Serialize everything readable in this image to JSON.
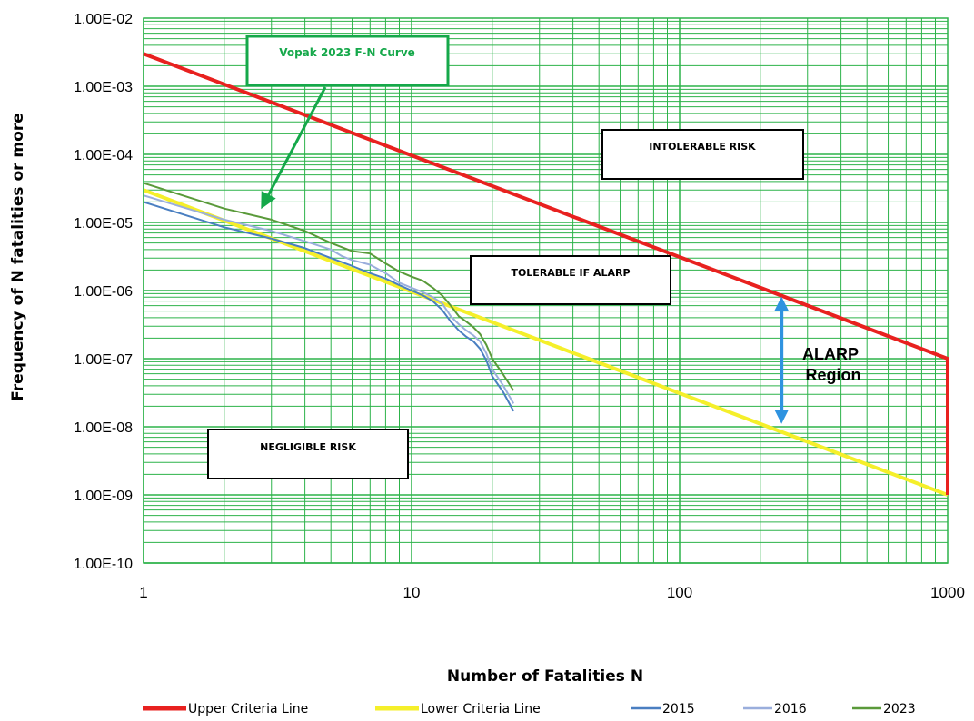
{
  "chart_data": {
    "type": "line",
    "title": "",
    "xlabel": "Number of Fatalities N",
    "ylabel": "Frequency of N fatalities or more",
    "x_scale": "log",
    "y_scale": "log",
    "xlim": [
      1,
      1000
    ],
    "ylim": [
      1e-10,
      0.01
    ],
    "grid": true,
    "grid_color": "#2db34a",
    "x_ticks": [
      {
        "value": 1,
        "label": "1"
      },
      {
        "value": 10,
        "label": "10"
      },
      {
        "value": 100,
        "label": "100"
      },
      {
        "value": 1000,
        "label": "1000"
      }
    ],
    "y_ticks": [
      {
        "value": 0.01,
        "label": "1.00E-02"
      },
      {
        "value": 0.001,
        "label": "1.00E-03"
      },
      {
        "value": 0.0001,
        "label": "1.00E-04"
      },
      {
        "value": 1e-05,
        "label": "1.00E-05"
      },
      {
        "value": 1e-06,
        "label": "1.00E-06"
      },
      {
        "value": 1e-07,
        "label": "1.00E-07"
      },
      {
        "value": 1e-08,
        "label": "1.00E-08"
      },
      {
        "value": 1e-09,
        "label": "1.00E-09"
      },
      {
        "value": 1e-10,
        "label": "1.00E-10"
      }
    ],
    "legend_position": "bottom",
    "series": [
      {
        "name": "Upper Criteria Line",
        "color": "#e8211f",
        "width": 4,
        "points": [
          [
            1,
            0.003
          ],
          [
            1000,
            1e-07
          ],
          [
            1000,
            1e-09
          ]
        ]
      },
      {
        "name": "Lower Criteria Line",
        "color": "#f5ef2a",
        "width": 4,
        "points": [
          [
            1,
            3e-05
          ],
          [
            1000,
            1e-09
          ]
        ]
      },
      {
        "name": "2015",
        "color": "#4a7fc1",
        "width": 2,
        "points": [
          [
            1,
            2e-05
          ],
          [
            2,
            8.5e-06
          ],
          [
            3,
            5.8e-06
          ],
          [
            4,
            4.2e-06
          ],
          [
            5,
            3e-06
          ],
          [
            6,
            2.3e-06
          ],
          [
            7,
            1.8e-06
          ],
          [
            8,
            1.5e-06
          ],
          [
            9,
            1.2e-06
          ],
          [
            10,
            1e-06
          ],
          [
            11,
            8.5e-07
          ],
          [
            12,
            7e-07
          ],
          [
            13,
            5.2e-07
          ],
          [
            14,
            3.5e-07
          ],
          [
            15,
            2.6e-07
          ],
          [
            16,
            2.1e-07
          ],
          [
            17,
            1.8e-07
          ],
          [
            18,
            1.4e-07
          ],
          [
            19,
            9.5e-08
          ],
          [
            20,
            5.5e-08
          ],
          [
            22,
            3.2e-08
          ],
          [
            24,
            1.7e-08
          ]
        ]
      },
      {
        "name": "2016",
        "color": "#9aaedc",
        "width": 2,
        "points": [
          [
            1,
            2.5e-05
          ],
          [
            2,
            1.1e-05
          ],
          [
            3,
            7.5e-06
          ],
          [
            4,
            5.3e-06
          ],
          [
            5,
            4e-06
          ],
          [
            5.5,
            3.2e-06
          ],
          [
            6,
            2.8e-06
          ],
          [
            7,
            2.4e-06
          ],
          [
            8,
            1.8e-06
          ],
          [
            9,
            1.3e-06
          ],
          [
            10,
            1.1e-06
          ],
          [
            11,
            9.5e-07
          ],
          [
            12,
            8e-07
          ],
          [
            13,
            6.5e-07
          ],
          [
            14,
            4.2e-07
          ],
          [
            15,
            3.2e-07
          ],
          [
            16,
            2.6e-07
          ],
          [
            17,
            2.2e-07
          ],
          [
            18,
            1.8e-07
          ],
          [
            19,
            1.2e-07
          ],
          [
            20,
            7e-08
          ],
          [
            22,
            4e-08
          ],
          [
            24,
            2.2e-08
          ]
        ]
      },
      {
        "name": "2023",
        "color": "#5a9a3a",
        "width": 2,
        "points": [
          [
            1,
            3.8e-05
          ],
          [
            2,
            1.6e-05
          ],
          [
            3,
            1.1e-05
          ],
          [
            4,
            7.5e-06
          ],
          [
            5,
            5e-06
          ],
          [
            6,
            3.8e-06
          ],
          [
            7,
            3.5e-06
          ],
          [
            8,
            2.5e-06
          ],
          [
            9,
            1.9e-06
          ],
          [
            10,
            1.6e-06
          ],
          [
            11,
            1.4e-06
          ],
          [
            12,
            1.1e-06
          ],
          [
            13,
            8.5e-07
          ],
          [
            14,
            6e-07
          ],
          [
            15,
            4.2e-07
          ],
          [
            16,
            3.5e-07
          ],
          [
            17,
            2.9e-07
          ],
          [
            18,
            2.3e-07
          ],
          [
            19,
            1.6e-07
          ],
          [
            20,
            1e-07
          ],
          [
            22,
            5.8e-08
          ],
          [
            24,
            3.4e-08
          ]
        ]
      }
    ],
    "annotations": {
      "callout": {
        "text": "Vopak 2023 F-N Curve",
        "color": "#15a84a"
      },
      "intolerable": {
        "text": "INTOLERABLE RISK"
      },
      "tolerable": {
        "text": "TOLERABLE IF ALARP"
      },
      "negligible": {
        "text": "NEGLIGIBLE RISK"
      },
      "alarp_line1": "ALARP",
      "alarp_line2": "Region",
      "alarp_arrow": {
        "color": "#2f93e0",
        "x": 240,
        "y_top": 9e-07,
        "y_bottom": 1e-08
      }
    }
  }
}
